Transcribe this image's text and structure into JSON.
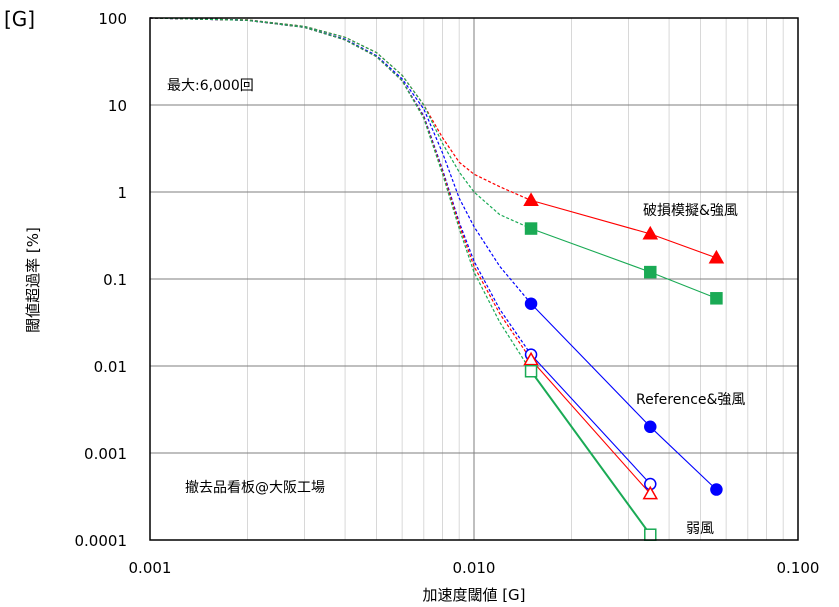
{
  "chart_data": {
    "type": "scatter",
    "scale": {
      "x": "log",
      "y": "log"
    },
    "xlim": [
      0.001,
      0.1
    ],
    "ylim": [
      0.0001,
      100
    ],
    "x_ticks": [
      "0.001",
      "0.010",
      "0.100"
    ],
    "y_ticks": [
      "100",
      "10",
      "1",
      "0.1",
      "0.01",
      "0.001",
      "0.0001"
    ],
    "xlabel": "加速度閾値 [G]",
    "ylabel": "閾値超過率 [%]",
    "corner_label": "[G]",
    "annotations": [
      "最大:6,000回",
      "撤去品看板@大阪工場",
      "破損模擬&強風",
      "Reference&強風",
      "弱風"
    ],
    "grid": true,
    "series": [
      {
        "name": "破損模擬&強風",
        "color": "#ff0000",
        "marker": "triangle-filled",
        "points": [
          [
            0.015,
            0.8
          ],
          [
            0.035,
            0.33
          ],
          [
            0.056,
            0.175
          ]
        ],
        "trend": [
          [
            0.001,
            100
          ],
          [
            0.002,
            95
          ],
          [
            0.003,
            80
          ],
          [
            0.004,
            60
          ],
          [
            0.005,
            40
          ],
          [
            0.006,
            22
          ],
          [
            0.007,
            10
          ],
          [
            0.008,
            4.2
          ],
          [
            0.009,
            2.2
          ],
          [
            0.01,
            1.6
          ],
          [
            0.012,
            1.15
          ],
          [
            0.015,
            0.8
          ]
        ]
      },
      {
        "name": "",
        "color": "#1aaa55",
        "marker": "square-filled",
        "points": [
          [
            0.015,
            0.38
          ],
          [
            0.035,
            0.12
          ],
          [
            0.056,
            0.06
          ]
        ],
        "trend": [
          [
            0.001,
            100
          ],
          [
            0.002,
            95
          ],
          [
            0.003,
            80
          ],
          [
            0.004,
            60
          ],
          [
            0.005,
            40
          ],
          [
            0.006,
            22
          ],
          [
            0.007,
            10
          ],
          [
            0.008,
            3.6
          ],
          [
            0.009,
            1.7
          ],
          [
            0.01,
            1.0
          ],
          [
            0.012,
            0.55
          ],
          [
            0.015,
            0.38
          ]
        ]
      },
      {
        "name": "Reference&強風",
        "color": "#0000ff",
        "marker": "circle-filled",
        "points": [
          [
            0.015,
            0.052
          ],
          [
            0.035,
            0.002
          ],
          [
            0.056,
            0.00038
          ]
        ],
        "trend": [
          [
            0.001,
            100
          ],
          [
            0.002,
            94
          ],
          [
            0.003,
            78
          ],
          [
            0.004,
            57
          ],
          [
            0.005,
            37
          ],
          [
            0.006,
            20
          ],
          [
            0.007,
            9
          ],
          [
            0.008,
            2.8
          ],
          [
            0.009,
            0.85
          ],
          [
            0.01,
            0.4
          ],
          [
            0.012,
            0.14
          ],
          [
            0.015,
            0.052
          ]
        ]
      },
      {
        "name": "",
        "color": "#0000ff",
        "marker": "circle-open",
        "points": [
          [
            0.015,
            0.0135
          ],
          [
            0.035,
            0.00044
          ]
        ],
        "trend": [
          [
            0.001,
            100
          ],
          [
            0.002,
            94
          ],
          [
            0.003,
            78
          ],
          [
            0.004,
            56
          ],
          [
            0.005,
            36
          ],
          [
            0.006,
            19
          ],
          [
            0.007,
            7.5
          ],
          [
            0.008,
            1.8
          ],
          [
            0.009,
            0.45
          ],
          [
            0.01,
            0.16
          ],
          [
            0.012,
            0.045
          ],
          [
            0.015,
            0.0135
          ]
        ]
      },
      {
        "name": "",
        "color": "#ff0000",
        "marker": "triangle-open",
        "points": [
          [
            0.015,
            0.0118
          ],
          [
            0.035,
            0.00034
          ]
        ],
        "trend": [
          [
            0.001,
            100
          ],
          [
            0.002,
            94
          ],
          [
            0.003,
            78
          ],
          [
            0.004,
            56
          ],
          [
            0.005,
            36
          ],
          [
            0.006,
            19
          ],
          [
            0.007,
            7.2
          ],
          [
            0.008,
            1.7
          ],
          [
            0.009,
            0.42
          ],
          [
            0.01,
            0.14
          ],
          [
            0.012,
            0.04
          ],
          [
            0.015,
            0.0118
          ]
        ]
      },
      {
        "name": "弱風",
        "color": "#1aaa55",
        "marker": "square-open",
        "points": [
          [
            0.015,
            0.0087
          ],
          [
            0.035,
            0.000115
          ]
        ],
        "trend": [
          [
            0.001,
            100
          ],
          [
            0.002,
            94
          ],
          [
            0.003,
            78
          ],
          [
            0.004,
            56
          ],
          [
            0.005,
            36
          ],
          [
            0.006,
            19
          ],
          [
            0.007,
            7.0
          ],
          [
            0.008,
            1.6
          ],
          [
            0.009,
            0.38
          ],
          [
            0.01,
            0.12
          ],
          [
            0.012,
            0.032
          ],
          [
            0.015,
            0.0087
          ]
        ]
      }
    ]
  }
}
